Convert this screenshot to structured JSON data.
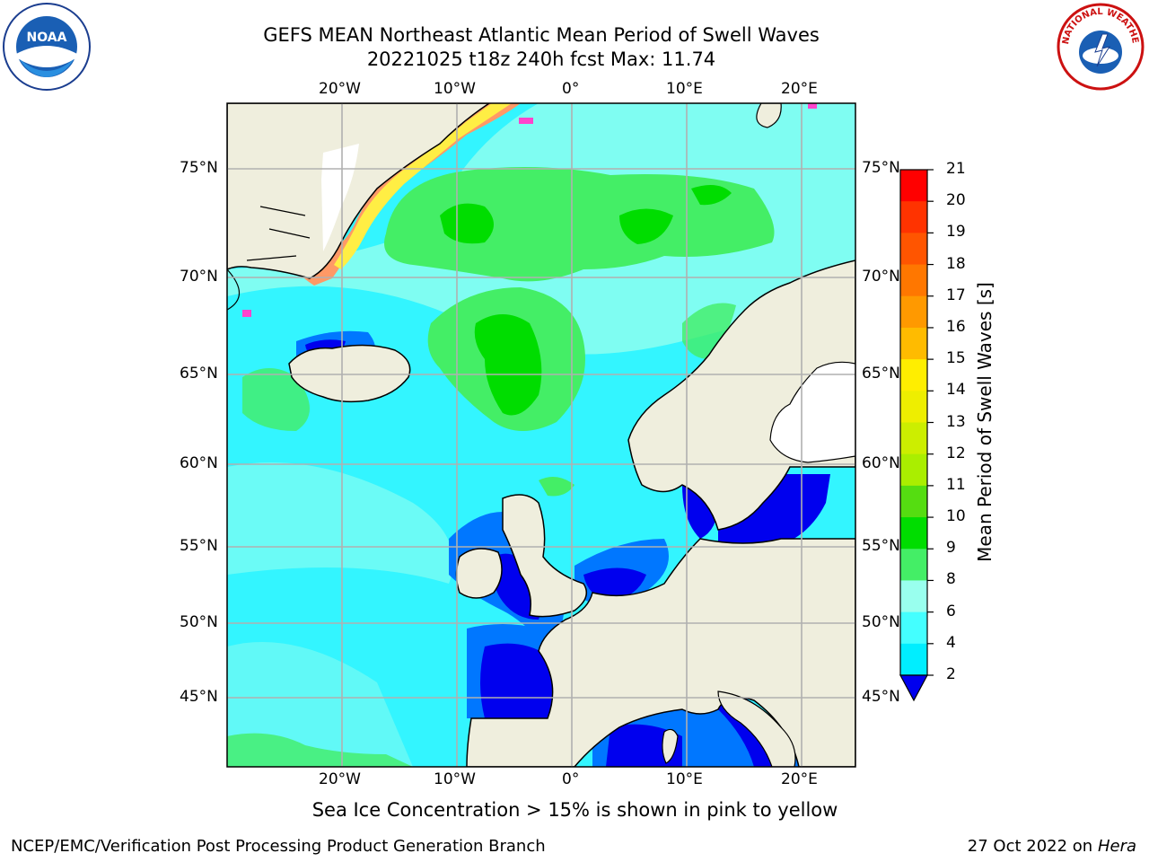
{
  "title": {
    "line1": "GEFS MEAN Northeast Atlantic Mean Period of Swell Waves",
    "line2": "20221025 t18z 240h fcst   Max: 11.74"
  },
  "axes": {
    "lon_labels_top": [
      "20°W",
      "10°W",
      "0°",
      "10°E",
      "20°E"
    ],
    "lon_labels_bottom": [
      "20°W",
      "10°W",
      "0°",
      "10°E",
      "20°E"
    ],
    "lat_labels_left": [
      "75°N",
      "70°N",
      "65°N",
      "60°N",
      "55°N",
      "50°N",
      "45°N"
    ],
    "lat_labels_right": [
      "75°N",
      "70°N",
      "65°N",
      "60°N",
      "55°N",
      "50°N",
      "45°N"
    ]
  },
  "colorbar": {
    "label": "Mean Period of Swell Waves [s]",
    "ticks": [
      "21",
      "20",
      "19",
      "18",
      "17",
      "16",
      "15",
      "14",
      "13",
      "12",
      "11",
      "10",
      "9",
      "8",
      "6",
      "4",
      "2"
    ],
    "colors": [
      "#ff0000",
      "#ff3300",
      "#ff5500",
      "#ff7700",
      "#ff9900",
      "#ffbb00",
      "#ffee00",
      "#eeee00",
      "#ccee00",
      "#aaee00",
      "#55dd11",
      "#00dd00",
      "#44ee66",
      "#99ffee",
      "#44ffff",
      "#00eeff",
      "#0077ff"
    ],
    "under_color": "#0000ee"
  },
  "colors": {
    "land": "#efeedd",
    "ocean_cyan": "#33f5ff",
    "ocean_light": "#99ffee",
    "green": "#44ee66",
    "bright_green": "#00dd00",
    "blue": "#0077ff",
    "dark_blue": "#0000ee",
    "ice_pink": "#ff44cc",
    "ice_orange": "#ff9966",
    "ice_yellow": "#ffee44"
  },
  "footnote": "Sea Ice Concentration > 15% is shown in pink to yellow",
  "credit": "NCEP/EMC/Verification Post Processing Product Generation Branch",
  "date": {
    "text": "27 Oct 2022 on",
    "machine": "Hera"
  },
  "logos": {
    "left": "noaa-logo",
    "left_text": "NOAA",
    "right": "nws-logo",
    "right_text": "NATIONAL WEATHER SERVICE"
  }
}
